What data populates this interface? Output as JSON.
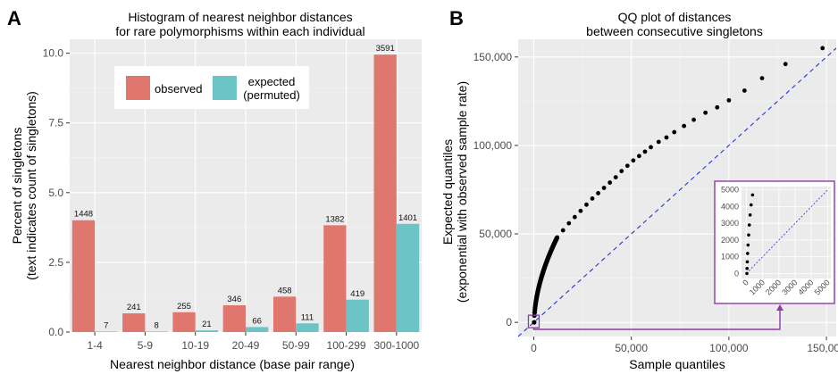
{
  "panels": {
    "a_letter": "A",
    "b_letter": "B"
  },
  "chart_data": [
    {
      "type": "bar",
      "title_lines": [
        "Histogram of nearest neighbor distances",
        "for rare polymorphisms within each individual"
      ],
      "xlabel": "Nearest neighbor distance (base pair range)",
      "ylabel_lines": [
        "Percent of singletons",
        "(text indicates count of singletons)"
      ],
      "categories": [
        "1-4",
        "5-9",
        "10-19",
        "20-49",
        "50-99",
        "100-299",
        "300-1000"
      ],
      "ylim": [
        0,
        10.5
      ],
      "yticks": [
        0,
        2.5,
        5,
        7.5,
        10
      ],
      "ytick_labels": [
        "0.0",
        "2.5",
        "5.0",
        "7.5",
        "10.0"
      ],
      "series": [
        {
          "name": "observed",
          "color": "#e0776e",
          "values": [
            4.01,
            0.67,
            0.71,
            0.96,
            1.27,
            3.83,
            9.95
          ],
          "labels": [
            "1448",
            "241",
            "255",
            "346",
            "458",
            "1382",
            "3591"
          ]
        },
        {
          "name": "expected\n(permuted)",
          "color": "#6cc4c6",
          "values": [
            0.02,
            0.02,
            0.06,
            0.18,
            0.31,
            1.16,
            3.88
          ],
          "labels": [
            "7",
            "8",
            "21",
            "66",
            "111",
            "419",
            "1401"
          ]
        }
      ],
      "legend": {
        "position": "top-center",
        "labels": [
          "observed",
          "expected",
          "(permuted)"
        ]
      },
      "grid": true
    },
    {
      "type": "scatter",
      "title_lines": [
        "QQ plot of distances",
        "between consecutive singletons"
      ],
      "xlabel": "Sample quantiles",
      "ylabel_lines": [
        "Expected quantiles",
        "(exponential with observed sample rate)"
      ],
      "xlim": [
        -8000,
        155000
      ],
      "ylim": [
        -8000,
        160000
      ],
      "xticks": [
        0,
        50000,
        100000,
        150000
      ],
      "xtick_labels": [
        "0",
        "50,000",
        "100,000",
        "150,000"
      ],
      "yticks": [
        0,
        50000,
        100000,
        150000
      ],
      "ytick_labels": [
        "0",
        "50,000",
        "100,000",
        "150,000"
      ],
      "reference_line": "y = x (dashed, blue)",
      "outlier_points": [
        [
          12000,
          48000
        ],
        [
          15000,
          52000
        ],
        [
          18000,
          56000
        ],
        [
          21000,
          59500
        ],
        [
          24000,
          63000
        ],
        [
          27000,
          66500
        ],
        [
          30000,
          70000
        ],
        [
          33000,
          73000
        ],
        [
          36000,
          76000
        ],
        [
          39000,
          79000
        ],
        [
          42000,
          82000
        ],
        [
          45000,
          85500
        ],
        [
          48000,
          88500
        ],
        [
          51000,
          91500
        ],
        [
          54000,
          94000
        ],
        [
          57000,
          96500
        ],
        [
          60000,
          99000
        ],
        [
          64000,
          102000
        ],
        [
          68000,
          104500
        ],
        [
          72000,
          107500
        ],
        [
          77000,
          111000
        ],
        [
          82000,
          114500
        ],
        [
          88000,
          118500
        ],
        [
          94000,
          121500
        ],
        [
          100000,
          125500
        ],
        [
          108000,
          131000
        ],
        [
          117000,
          138000
        ],
        [
          129000,
          146000
        ],
        [
          148000,
          155000
        ]
      ],
      "inset": {
        "xlim": [
          -300,
          5200
        ],
        "ylim": [
          -300,
          5200
        ],
        "ticks": [
          0,
          1000,
          2000,
          3000,
          4000,
          5000
        ],
        "tick_labels": [
          "0",
          "1000",
          "2000",
          "3000",
          "4000",
          "5000"
        ],
        "points": [
          [
            30,
            0
          ],
          [
            40,
            300
          ],
          [
            55,
            700
          ],
          [
            75,
            1200
          ],
          [
            100,
            1700
          ],
          [
            140,
            2300
          ],
          [
            180,
            2900
          ],
          [
            230,
            3500
          ],
          [
            290,
            4100
          ],
          [
            380,
            4700
          ]
        ]
      },
      "grid": true
    }
  ]
}
